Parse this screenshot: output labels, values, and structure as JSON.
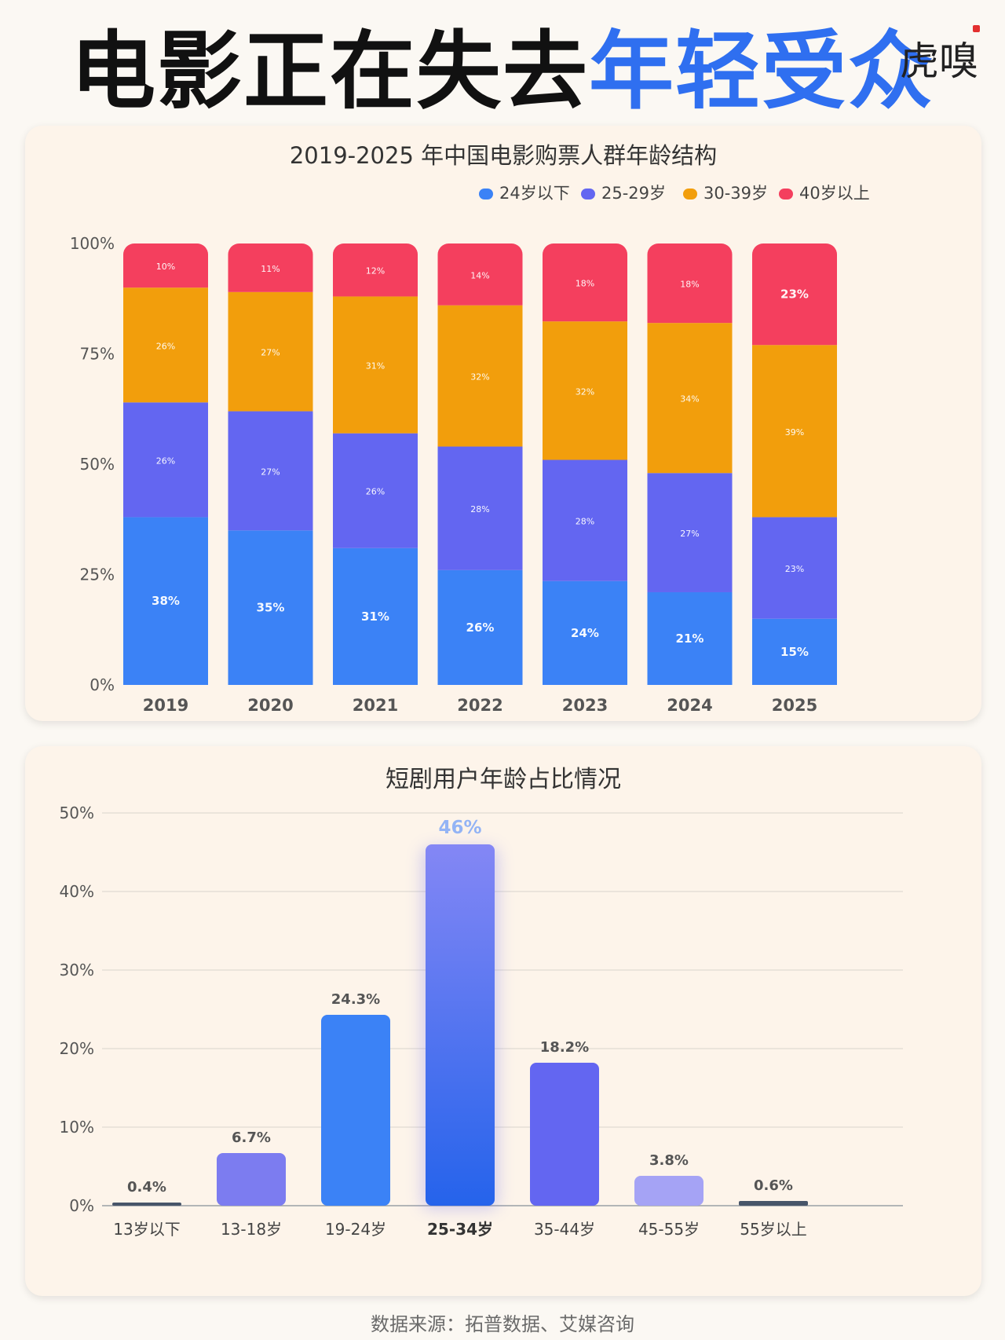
{
  "headline": {
    "part1": "电影正在失去",
    "part2": "年轻受众"
  },
  "logo": "虎嗅",
  "colors": {
    "under24": "#3b82f6",
    "age25_29": "#6366f1",
    "age30_39": "#f29e0c",
    "over40": "#f43f5e",
    "headline_blue": "#2f6ff0"
  },
  "chart_data": [
    {
      "type": "bar",
      "stacked": true,
      "title": "2019-2025 年中国电影购票人群年龄结构",
      "categories": [
        "2019",
        "2020",
        "2021",
        "2022",
        "2023",
        "2024",
        "2025"
      ],
      "series": [
        {
          "name": "24岁以下",
          "values": [
            38,
            35,
            31,
            26,
            24,
            21,
            15
          ],
          "labels": [
            "38%",
            "35%",
            "31%",
            "26%",
            "24%",
            "21%",
            "15%"
          ]
        },
        {
          "name": "25-29岁",
          "values": [
            26,
            27,
            26,
            28,
            28,
            27,
            23
          ],
          "labels": [
            "26%",
            "27%",
            "26%",
            "28%",
            "28%",
            "27%",
            "23%"
          ]
        },
        {
          "name": "30-39岁",
          "values": [
            26,
            27,
            31,
            32,
            32,
            34,
            39
          ],
          "labels": [
            "26%",
            "27%",
            "31%",
            "32%",
            "32%",
            "34%",
            "39%"
          ]
        },
        {
          "name": "40岁以上",
          "values": [
            10,
            11,
            12,
            14,
            18,
            18,
            23
          ],
          "labels": [
            "10%",
            "11%",
            "12%",
            "14%",
            "18%",
            "18%",
            "23%"
          ]
        }
      ],
      "yticks": [
        "0%",
        "25%",
        "50%",
        "75%",
        "100%"
      ],
      "ylim": [
        0,
        100
      ],
      "legend_position": "top-right"
    },
    {
      "type": "bar",
      "title": "短剧用户年龄占比情况",
      "categories": [
        "13岁以下",
        "13-18岁",
        "19-24岁",
        "25-34岁",
        "35-44岁",
        "45-55岁",
        "55岁以上"
      ],
      "values": [
        0.4,
        6.7,
        24.3,
        46,
        18.2,
        3.8,
        0.6
      ],
      "labels": [
        "0.4%",
        "6.7%",
        "24.3%",
        "46%",
        "18.2%",
        "3.8%",
        "0.6%"
      ],
      "bar_colors": [
        "#475569",
        "#7c7cf0",
        "#3b82f6",
        "#3b6cf2",
        "#6366f1",
        "#a5a3f5",
        "#475569"
      ],
      "highlight": "25-34岁",
      "yticks": [
        "0%",
        "10%",
        "20%",
        "30%",
        "40%",
        "50%"
      ],
      "ylim": [
        0,
        50
      ],
      "grid": true
    }
  ],
  "source": "数据来源：拓普数据、艾媒咨询"
}
